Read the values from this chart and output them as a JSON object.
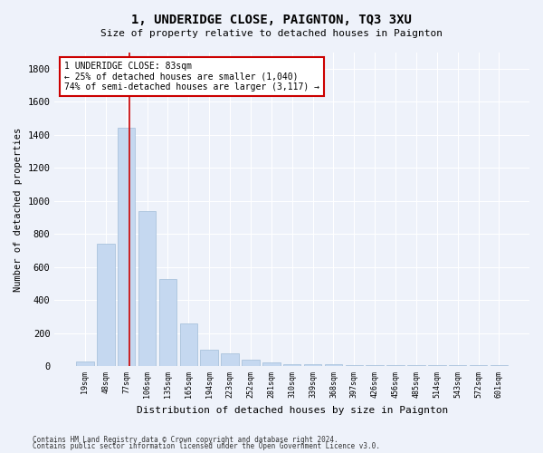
{
  "title": "1, UNDERIDGE CLOSE, PAIGNTON, TQ3 3XU",
  "subtitle": "Size of property relative to detached houses in Paignton",
  "xlabel": "Distribution of detached houses by size in Paignton",
  "ylabel": "Number of detached properties",
  "categories": [
    "19sqm",
    "48sqm",
    "77sqm",
    "106sqm",
    "135sqm",
    "165sqm",
    "194sqm",
    "223sqm",
    "252sqm",
    "281sqm",
    "310sqm",
    "339sqm",
    "368sqm",
    "397sqm",
    "426sqm",
    "456sqm",
    "485sqm",
    "514sqm",
    "543sqm",
    "572sqm",
    "601sqm"
  ],
  "values": [
    30,
    740,
    1440,
    940,
    530,
    260,
    100,
    80,
    40,
    25,
    10,
    10,
    10,
    5,
    5,
    5,
    5,
    5,
    5,
    5,
    5
  ],
  "bar_color": "#c5d8f0",
  "bar_edge_color": "#a0bcd8",
  "annotation_text_line1": "1 UNDERIDGE CLOSE: 83sqm",
  "annotation_text_line2": "← 25% of detached houses are smaller (1,040)",
  "annotation_text_line3": "74% of semi-detached houses are larger (3,117) →",
  "annotation_box_color": "#ffffff",
  "annotation_box_edge_color": "#cc0000",
  "vline_color": "#cc0000",
  "ylim": [
    0,
    1900
  ],
  "yticks": [
    0,
    200,
    400,
    600,
    800,
    1000,
    1200,
    1400,
    1600,
    1800
  ],
  "footnote1": "Contains HM Land Registry data © Crown copyright and database right 2024.",
  "footnote2": "Contains public sector information licensed under the Open Government Licence v3.0.",
  "bg_color": "#eef2fa",
  "plot_bg_color": "#eef2fa",
  "grid_color": "#ffffff"
}
